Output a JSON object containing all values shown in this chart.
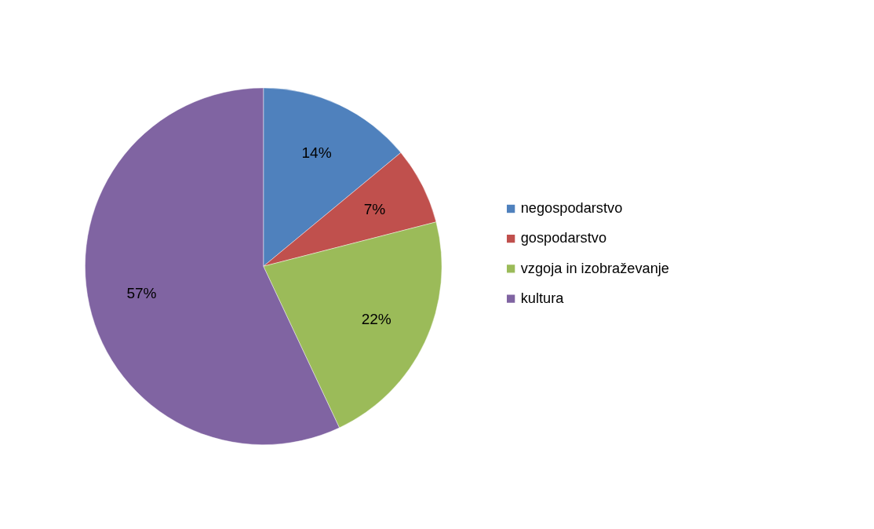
{
  "chart_data": {
    "type": "pie",
    "categories": [
      "negospodarstvo",
      "gospodarstvo",
      "vzgoja in izobraževanje",
      "kultura"
    ],
    "values": [
      14,
      7,
      22,
      57
    ],
    "colors": [
      "#4f81bd",
      "#c0504d",
      "#9bbb59",
      "#8064a2"
    ],
    "value_labels": [
      "14%",
      "7%",
      "22%",
      "57%"
    ],
    "legend": "right"
  }
}
